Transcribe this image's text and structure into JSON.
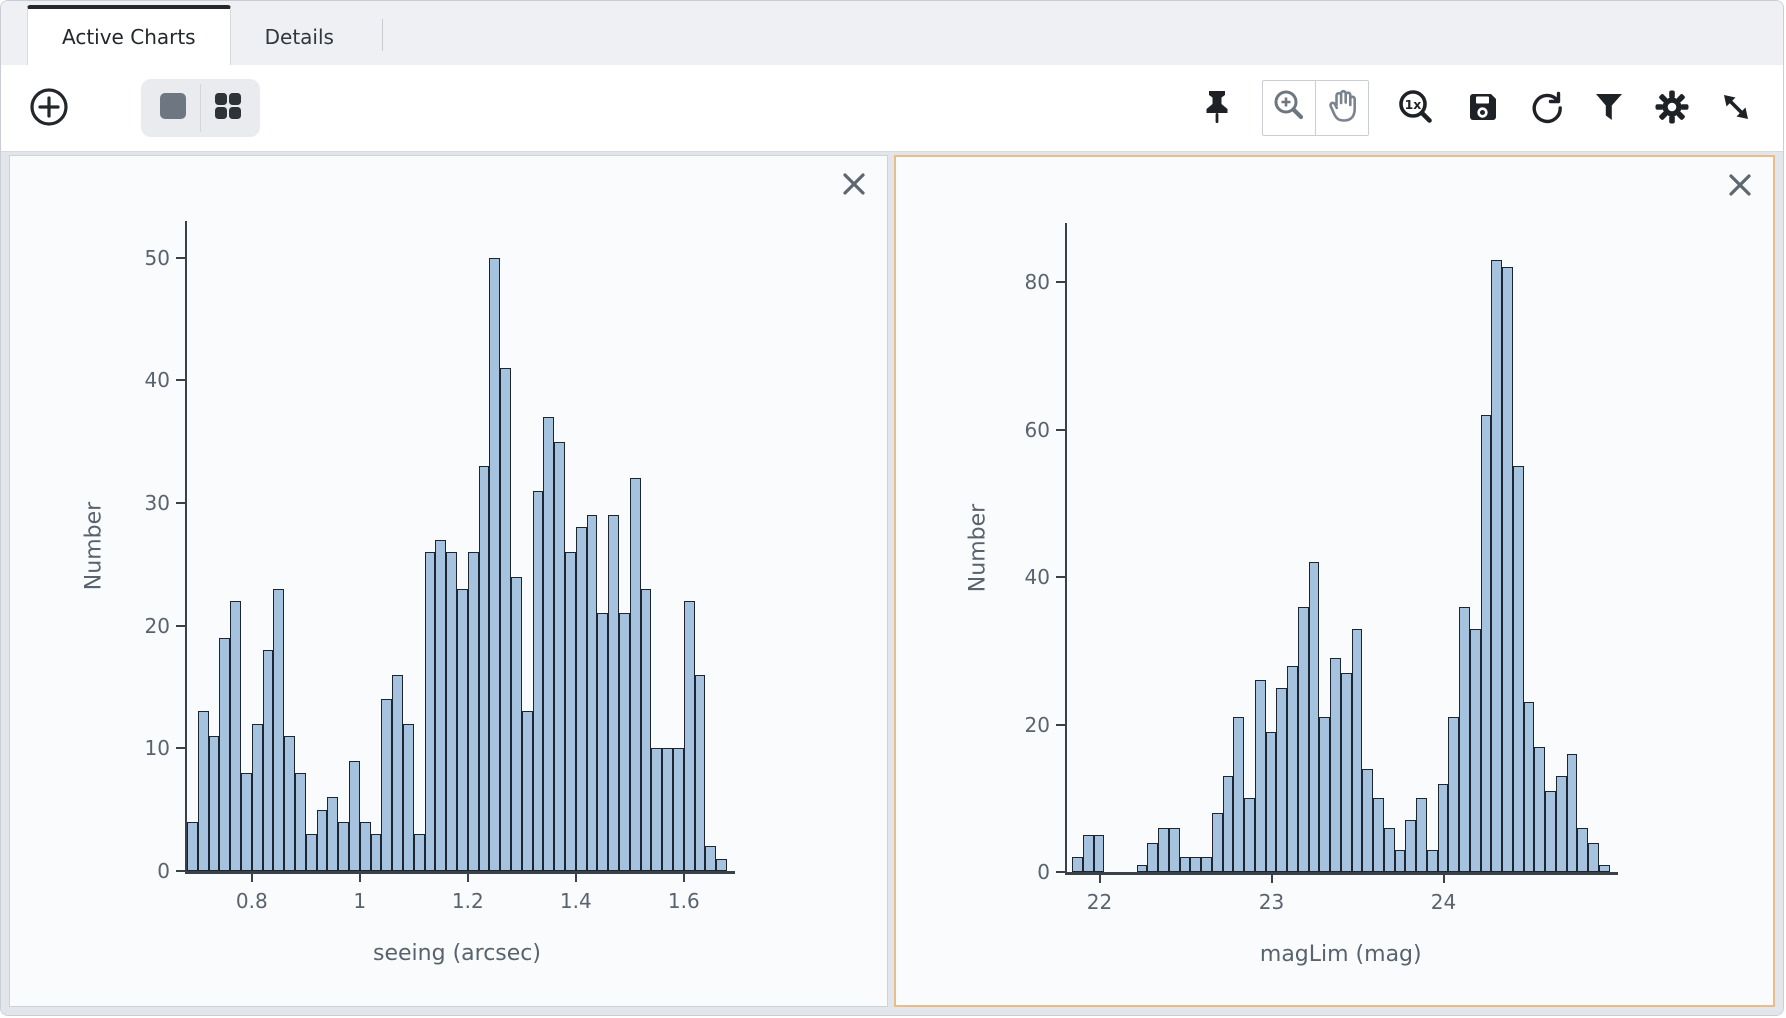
{
  "tabs": [
    {
      "label": "Active Charts",
      "active": true
    },
    {
      "label": "Details",
      "active": false
    }
  ],
  "toolbar": {
    "add_icon": "add-chart-plus-circle",
    "view_modes": [
      "single-view",
      "grid-view"
    ],
    "right_icons": [
      "pin",
      "zoom-in",
      "pan-hand",
      "zoom-1x",
      "save",
      "restore",
      "filter",
      "settings-gear",
      "expand"
    ]
  },
  "panels": [
    {
      "name": "seeing-histogram",
      "selected": false
    },
    {
      "name": "maglim-histogram",
      "selected": true
    }
  ],
  "colors": {
    "bar_fill": "#a5c2df",
    "bar_stroke": "#1d2530",
    "selected_panel_border": "#e9bd85",
    "icon_dark": "#1e2227",
    "icon_gray": "#6e7781"
  },
  "chart_data": [
    {
      "type": "bar",
      "subtype": "histogram",
      "xlabel": "seeing (arcsec)",
      "ylabel": "Number",
      "x_start": 0.68,
      "bin_width": 0.02,
      "x_ticks": [
        {
          "label": "0.8",
          "value": 0.8
        },
        {
          "label": "1",
          "value": 1
        },
        {
          "label": "1.2",
          "value": 1.2
        },
        {
          "label": "1.4",
          "value": 1.4
        },
        {
          "label": "1.6",
          "value": 1.6
        }
      ],
      "y_ticks": [
        0,
        10,
        20,
        30,
        40,
        50
      ],
      "ylim": [
        0,
        53
      ],
      "grid": false,
      "values": [
        4,
        13,
        11,
        19,
        22,
        8,
        12,
        18,
        23,
        11,
        8,
        3,
        5,
        6,
        4,
        9,
        4,
        3,
        14,
        16,
        12,
        3,
        26,
        27,
        26,
        23,
        26,
        33,
        50,
        41,
        24,
        13,
        31,
        37,
        35,
        26,
        28,
        29,
        21,
        29,
        21,
        32,
        23,
        10,
        10,
        10,
        22,
        16,
        2,
        1
      ]
    },
    {
      "type": "bar",
      "subtype": "histogram",
      "xlabel": "magLim (mag)",
      "ylabel": "Number",
      "x_start": 21.84,
      "bin_width": 0.0625,
      "x_ticks": [
        {
          "label": "22",
          "value": 22
        },
        {
          "label": "23",
          "value": 23
        },
        {
          "label": "24",
          "value": 24
        }
      ],
      "y_ticks": [
        0,
        20,
        40,
        60,
        80
      ],
      "ylim": [
        0,
        88
      ],
      "grid": false,
      "values": [
        2,
        5,
        5,
        0,
        0,
        0,
        1,
        4,
        6,
        6,
        2,
        2,
        2,
        8,
        13,
        21,
        10,
        26,
        19,
        25,
        28,
        36,
        42,
        21,
        29,
        27,
        33,
        14,
        10,
        6,
        3,
        7,
        10,
        3,
        12,
        21,
        36,
        33,
        62,
        83,
        82,
        55,
        23,
        17,
        11,
        13,
        16,
        6,
        4,
        1
      ]
    }
  ]
}
